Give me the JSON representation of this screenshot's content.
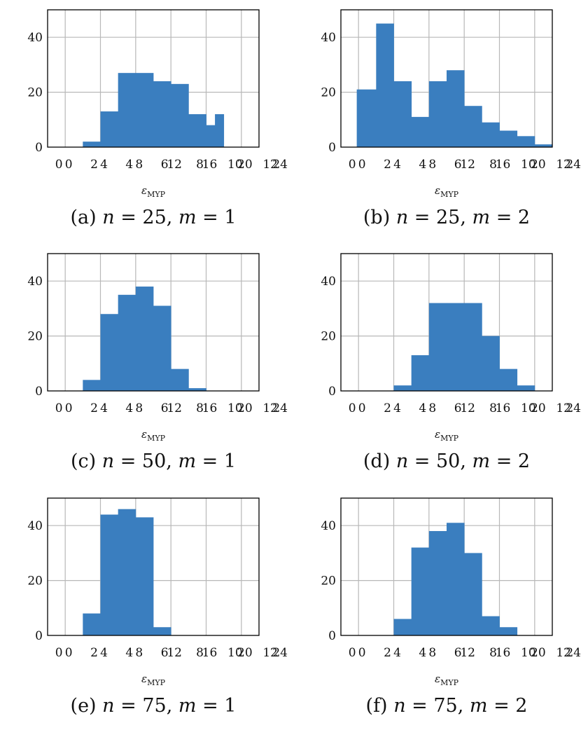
{
  "colors": {
    "bar": "#3a7ebf",
    "grid": "#b8b8b8",
    "axis": "#000000"
  },
  "chart_data": [
    {
      "type": "bar",
      "caption": {
        "letter": "(a)",
        "n_value": "25",
        "m_value": "1"
      },
      "xlabel": "ε",
      "xlabel_sub": "MYP",
      "ylim": [
        0,
        50
      ],
      "y_ticks": [
        0,
        20,
        40
      ],
      "x_tick_labels": [
        "0",
        "0",
        "2",
        "4",
        "4",
        "8",
        "6",
        "12",
        "8",
        "16",
        "10",
        "20",
        "12",
        "24"
      ],
      "grid": true,
      "bins": [
        {
          "x0": 1.0,
          "x1": 2.0,
          "value": 2
        },
        {
          "x0": 2.0,
          "x1": 3.0,
          "value": 13
        },
        {
          "x0": 3.0,
          "x1": 4.0,
          "value": 27
        },
        {
          "x0": 4.0,
          "x1": 5.0,
          "value": 27
        },
        {
          "x0": 5.0,
          "x1": 6.0,
          "value": 24
        },
        {
          "x0": 6.0,
          "x1": 6.5,
          "value": 23
        },
        {
          "x0": 6.5,
          "x1": 7.0,
          "value": 23
        },
        {
          "x0": 7.0,
          "x1": 7.5,
          "value": 12
        },
        {
          "x0": 7.5,
          "x1": 8.0,
          "value": 12
        },
        {
          "x0": 8.0,
          "x1": 8.5,
          "value": 8
        },
        {
          "x0": 8.5,
          "x1": 9.0,
          "value": 12
        }
      ]
    },
    {
      "type": "bar",
      "caption": {
        "letter": "(b)",
        "n_value": "25",
        "m_value": "2"
      },
      "xlabel": "ε",
      "xlabel_sub": "MYP",
      "ylim": [
        0,
        50
      ],
      "y_ticks": [
        0,
        20,
        40
      ],
      "x_tick_labels": [
        "0",
        "0",
        "2",
        "4",
        "4",
        "8",
        "6",
        "12",
        "8",
        "16",
        "10",
        "20",
        "12",
        "24"
      ],
      "grid": true,
      "bins": [
        {
          "x0": -0.1,
          "x1": 1.0,
          "value": 21
        },
        {
          "x0": 1.0,
          "x1": 2.0,
          "value": 45
        },
        {
          "x0": 2.0,
          "x1": 3.0,
          "value": 24
        },
        {
          "x0": 3.0,
          "x1": 4.0,
          "value": 11
        },
        {
          "x0": 4.0,
          "x1": 5.0,
          "value": 24
        },
        {
          "x0": 5.0,
          "x1": 6.0,
          "value": 28
        },
        {
          "x0": 6.0,
          "x1": 7.0,
          "value": 15
        },
        {
          "x0": 7.0,
          "x1": 8.0,
          "value": 9
        },
        {
          "x0": 8.0,
          "x1": 9.0,
          "value": 6
        },
        {
          "x0": 9.0,
          "x1": 10.0,
          "value": 4
        },
        {
          "x0": 10.0,
          "x1": 11.0,
          "value": 1
        }
      ]
    },
    {
      "type": "bar",
      "caption": {
        "letter": "(c)",
        "n_value": "50",
        "m_value": "1"
      },
      "xlabel": "ε",
      "xlabel_sub": "MYP",
      "ylim": [
        0,
        50
      ],
      "y_ticks": [
        0,
        20,
        40
      ],
      "x_tick_labels": [
        "0",
        "0",
        "2",
        "4",
        "4",
        "8",
        "6",
        "12",
        "8",
        "16",
        "10",
        "20",
        "12",
        "24"
      ],
      "grid": true,
      "bins": [
        {
          "x0": 1.0,
          "x1": 2.0,
          "value": 4
        },
        {
          "x0": 2.0,
          "x1": 3.0,
          "value": 28
        },
        {
          "x0": 3.0,
          "x1": 4.0,
          "value": 35
        },
        {
          "x0": 4.0,
          "x1": 5.0,
          "value": 38
        },
        {
          "x0": 5.0,
          "x1": 6.0,
          "value": 31
        },
        {
          "x0": 6.0,
          "x1": 7.0,
          "value": 8
        },
        {
          "x0": 7.0,
          "x1": 8.0,
          "value": 1
        }
      ]
    },
    {
      "type": "bar",
      "caption": {
        "letter": "(d)",
        "n_value": "50",
        "m_value": "2"
      },
      "xlabel": "ε",
      "xlabel_sub": "MYP",
      "ylim": [
        0,
        50
      ],
      "y_ticks": [
        0,
        20,
        40
      ],
      "x_tick_labels": [
        "0",
        "0",
        "2",
        "4",
        "4",
        "8",
        "6",
        "12",
        "8",
        "16",
        "10",
        "20",
        "12",
        "24"
      ],
      "grid": true,
      "bins": [
        {
          "x0": 2.0,
          "x1": 3.0,
          "value": 2
        },
        {
          "x0": 3.0,
          "x1": 4.0,
          "value": 13
        },
        {
          "x0": 4.0,
          "x1": 5.0,
          "value": 32
        },
        {
          "x0": 5.0,
          "x1": 6.0,
          "value": 32
        },
        {
          "x0": 6.0,
          "x1": 7.0,
          "value": 32
        },
        {
          "x0": 7.0,
          "x1": 8.0,
          "value": 20
        },
        {
          "x0": 8.0,
          "x1": 9.0,
          "value": 8
        },
        {
          "x0": 9.0,
          "x1": 10.0,
          "value": 2
        }
      ]
    },
    {
      "type": "bar",
      "caption": {
        "letter": "(e)",
        "n_value": "75",
        "m_value": "1"
      },
      "xlabel": "ε",
      "xlabel_sub": "MYP",
      "ylim": [
        0,
        50
      ],
      "y_ticks": [
        0,
        20,
        40
      ],
      "x_tick_labels": [
        "0",
        "0",
        "2",
        "4",
        "4",
        "8",
        "6",
        "12",
        "8",
        "16",
        "10",
        "20",
        "12",
        "24"
      ],
      "grid": true,
      "bins": [
        {
          "x0": 1.0,
          "x1": 2.0,
          "value": 8
        },
        {
          "x0": 2.0,
          "x1": 3.0,
          "value": 44
        },
        {
          "x0": 3.0,
          "x1": 4.0,
          "value": 46
        },
        {
          "x0": 4.0,
          "x1": 5.0,
          "value": 43
        },
        {
          "x0": 5.0,
          "x1": 6.0,
          "value": 3
        }
      ]
    },
    {
      "type": "bar",
      "caption": {
        "letter": "(f)",
        "n_value": "75",
        "m_value": "2"
      },
      "xlabel": "ε",
      "xlabel_sub": "MYP",
      "ylim": [
        0,
        50
      ],
      "y_ticks": [
        0,
        20,
        40
      ],
      "x_tick_labels": [
        "0",
        "0",
        "2",
        "4",
        "4",
        "8",
        "6",
        "12",
        "8",
        "16",
        "10",
        "20",
        "12",
        "24"
      ],
      "grid": true,
      "bins": [
        {
          "x0": 2.0,
          "x1": 3.0,
          "value": 6
        },
        {
          "x0": 3.0,
          "x1": 4.0,
          "value": 32
        },
        {
          "x0": 4.0,
          "x1": 5.0,
          "value": 38
        },
        {
          "x0": 5.0,
          "x1": 6.0,
          "value": 41
        },
        {
          "x0": 6.0,
          "x1": 7.0,
          "value": 30
        },
        {
          "x0": 7.0,
          "x1": 8.0,
          "value": 7
        },
        {
          "x0": 8.0,
          "x1": 9.0,
          "value": 3
        }
      ]
    }
  ]
}
